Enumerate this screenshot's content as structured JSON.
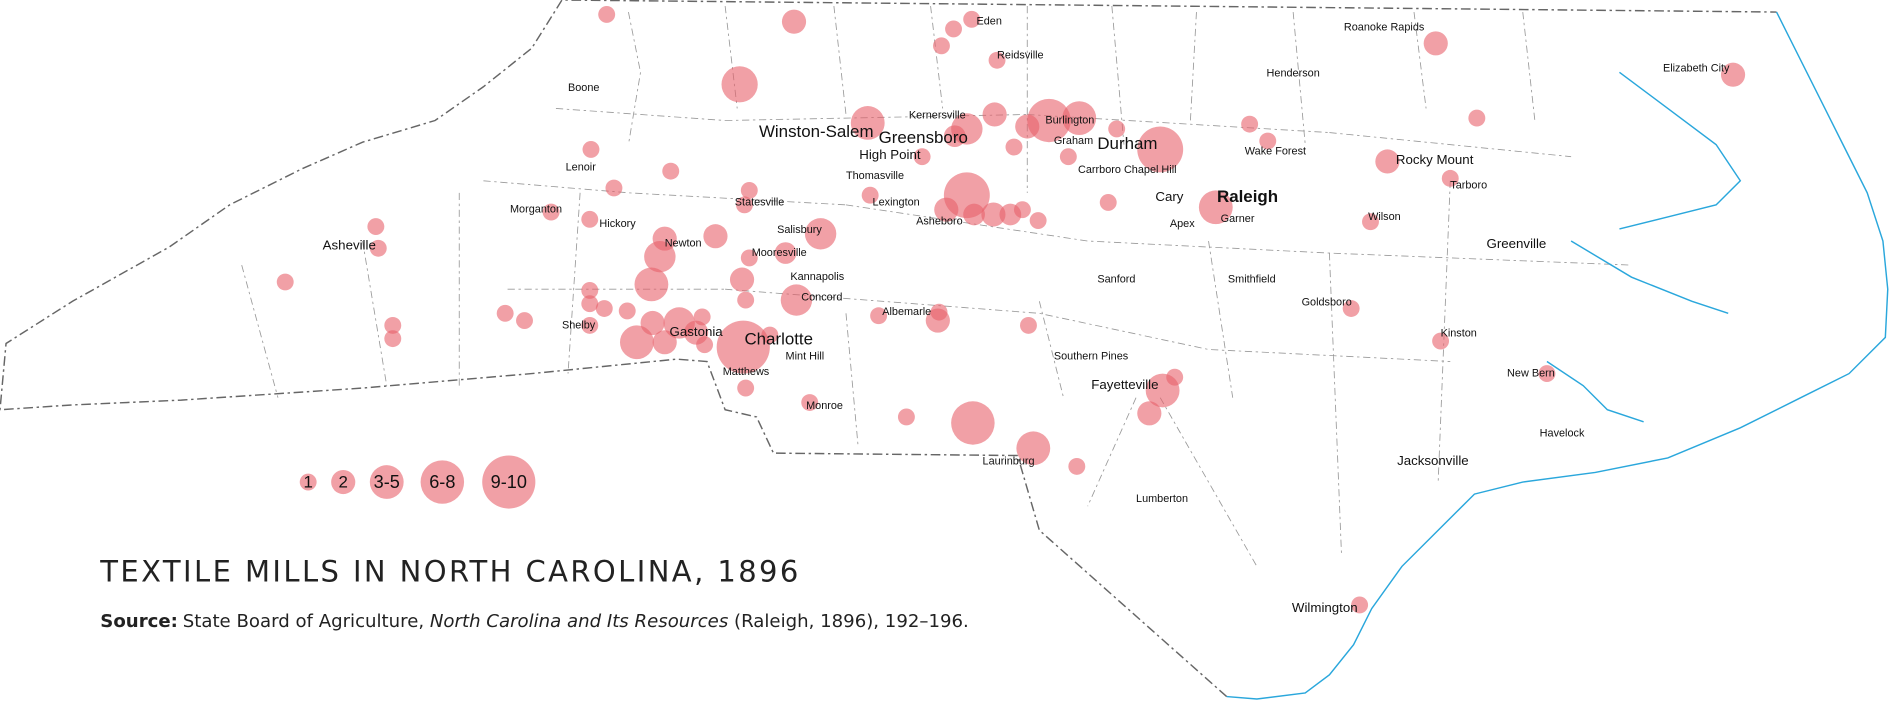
{
  "title": "TEXTILE MILLS IN NORTH CAROLINA, 1896",
  "source": {
    "label": "Source:",
    "text": "State Board of Agriculture, ",
    "italic": "North Carolina and Its Resources",
    "tail": " (Raleigh, 1896), 192–196."
  },
  "legend": [
    "1",
    "2",
    "3-5",
    "6-8",
    "9-10"
  ],
  "cities": [
    "Eden",
    "Reidsville",
    "Boone",
    "Henderson",
    "Roanoke Rapids",
    "Elizabeth City",
    "Kernersville",
    "Winston-Salem",
    "Greensboro",
    "Burlington",
    "Graham",
    "Durham",
    "Wake Forest",
    "High Point",
    "Lenoir",
    "Carrboro",
    "Chapel Hill",
    "Rocky Mount",
    "Thomasville",
    "Tarboro",
    "Statesville",
    "Lexington",
    "Cary",
    "Raleigh",
    "Morganton",
    "Garner",
    "Apex",
    "Hickory",
    "Asheboro",
    "Salisbury",
    "Wilson",
    "Asheville",
    "Newton",
    "Greenville",
    "Mooresville",
    "Sanford",
    "Smithfield",
    "Kannapolis",
    "Concord",
    "Goldsboro",
    "Albemarle",
    "Gastonia",
    "Shelby",
    "Charlotte",
    "Kinston",
    "Southern Pines",
    "Mint Hill",
    "Matthews",
    "New Bern",
    "Fayetteville",
    "Monroe",
    "Havelock",
    "Jacksonville",
    "Laurinburg",
    "Lumberton",
    "Wilmington"
  ]
}
